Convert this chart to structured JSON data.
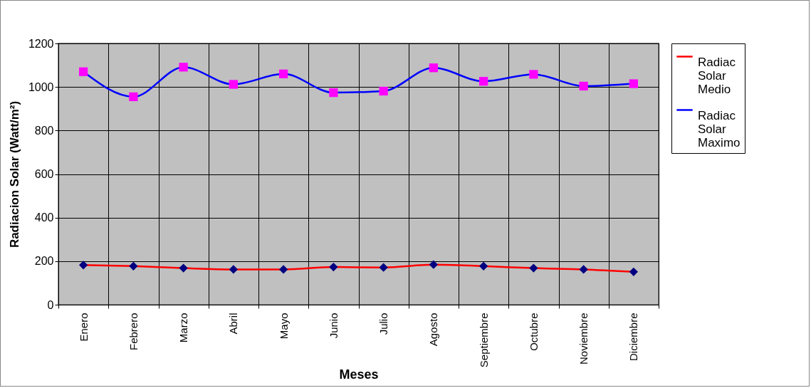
{
  "chart_data": {
    "type": "line",
    "xlabel": "Meses",
    "ylabel": "Radiacion Solar (Watt/m²)",
    "categories": [
      "Enero",
      "Febrero",
      "Marzo",
      "Abril",
      "Mayo",
      "Junio",
      "Julio",
      "Agosto",
      "Septiembre",
      "Octubre",
      "Noviembre",
      "Diciembre"
    ],
    "series": [
      {
        "name": "Radiac Solar Medio",
        "color": "#ff0000",
        "marker": "diamond",
        "colors": [
          "#000080",
          "#000080",
          "#000080",
          "#000080",
          "#000080",
          "#000080",
          "#000080",
          "#000080",
          "#000080",
          "#000080",
          "#000080",
          "#000080"
        ],
        "values": [
          182,
          177,
          168,
          162,
          162,
          173,
          171,
          184,
          177,
          168,
          162,
          151
        ]
      },
      {
        "name": "Radiac Solar Maximo",
        "color": "#0000ff",
        "marker": "square",
        "colors": [
          "#ff00ff",
          "#ff00ff",
          "#ff00ff",
          "#ff00ff",
          "#ff00ff",
          "#ff00ff",
          "#ff00ff",
          "#ff00ff",
          "#ff00ff",
          "#ff00ff",
          "#ff00ff",
          "#ff00ff"
        ],
        "values": [
          1070,
          955,
          1091,
          1012,
          1060,
          974,
          981,
          1088,
          1026,
          1058,
          1004,
          1015
        ]
      }
    ],
    "ylim": [
      0,
      1200
    ],
    "yticks": [
      0,
      200,
      400,
      600,
      800,
      1000,
      1200
    ],
    "grid": true,
    "legend": "right"
  }
}
